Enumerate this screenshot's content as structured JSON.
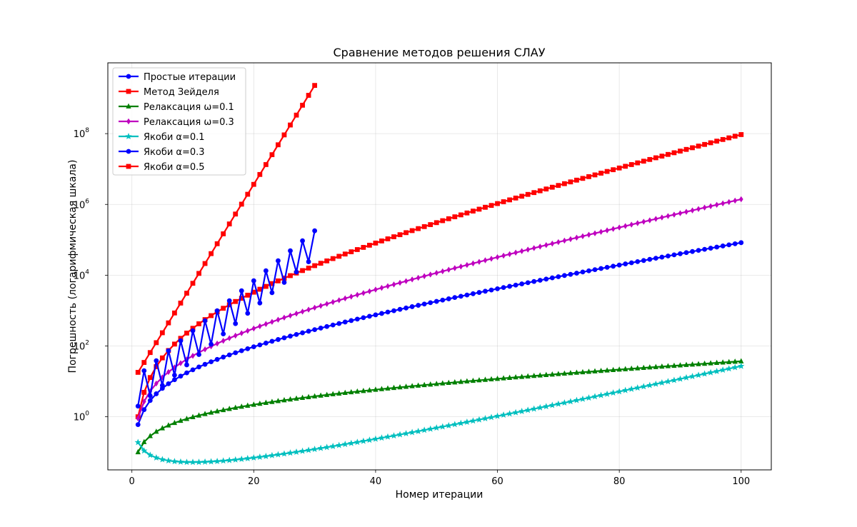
{
  "chart_data": {
    "type": "line",
    "title": "Сравнение методов решения СЛАУ",
    "xlabel": "Номер итерации",
    "ylabel": "Погрешность (логарифмическая шкала)",
    "yscale": "log",
    "xlim": [
      -3.95,
      104.95
    ],
    "ylim": [
      0.0316,
      10000000000.0
    ],
    "x_ticks": [
      0,
      20,
      40,
      60,
      80,
      100
    ],
    "y_ticks": [
      {
        "base": "10",
        "exp": "0",
        "value": 1
      },
      {
        "base": "10",
        "exp": "2",
        "value": 100
      },
      {
        "base": "10",
        "exp": "4",
        "value": 10000
      },
      {
        "base": "10",
        "exp": "6",
        "value": 1000000
      },
      {
        "base": "10",
        "exp": "8",
        "value": 100000000
      }
    ],
    "grid": true,
    "legend_position": "top-left",
    "series": [
      {
        "name": "Простые итерации",
        "color": "#0000ff",
        "marker": "circle",
        "x_start": 1,
        "x_end": 100,
        "y_start": 0.6,
        "y_end": 83000.0,
        "y_at_2": 1.5,
        "curve": "p"
      },
      {
        "name": "Метод Зейделя",
        "color": "#ff0000",
        "marker": "square",
        "x_start": 1,
        "x_end": 100,
        "y_start": 1.0,
        "y_end": 94000000.0,
        "y_at_2": 4.5,
        "curve": "p"
      },
      {
        "name": "Релаксация ω=0.1",
        "color": "#008000",
        "marker": "triangle",
        "x_start": 1,
        "x_end": 100,
        "y_start": 0.1,
        "y_end": 37,
        "y_at_2": 0.19,
        "curve": "p"
      },
      {
        "name": "Релаксация ω=0.3",
        "color": "#bf00bf",
        "marker": "diamond",
        "x_start": 1,
        "x_end": 100,
        "y_start": 0.9,
        "y_end": 1400000.0,
        "y_at_2": 2.5,
        "curve": "p"
      },
      {
        "name": "Якоби α=0.1",
        "color": "#00bfbf",
        "marker": "star",
        "x_start": 1,
        "x_end": 100,
        "y_start": 0.19,
        "y_end": 27,
        "y_at_2": 0.1,
        "curve": "p"
      },
      {
        "name": "Якоби α=0.3",
        "color": "#0000ff",
        "marker": "circle",
        "x_start": 1,
        "x_end": 30,
        "y_start": 2.0,
        "y_end": 180000.0,
        "curve": "zigzag",
        "y_low_end": 24000.0,
        "y_high_at_2": 20
      },
      {
        "name": "Якоби α=0.5",
        "color": "#ff0000",
        "marker": "square",
        "x_start": 1,
        "x_end": 30,
        "y_start": 18,
        "y_end": 2300000000.0,
        "curve": "exp"
      }
    ]
  }
}
